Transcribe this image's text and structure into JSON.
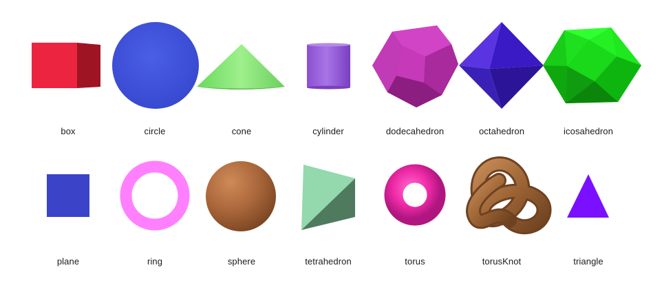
{
  "shapes": [
    {
      "label": "box"
    },
    {
      "label": "circle"
    },
    {
      "label": "cone"
    },
    {
      "label": "cylinder"
    },
    {
      "label": "dodecahedron"
    },
    {
      "label": "octahedron"
    },
    {
      "label": "icosahedron"
    },
    {
      "label": "plane"
    },
    {
      "label": "ring"
    },
    {
      "label": "sphere"
    },
    {
      "label": "tetrahedron"
    },
    {
      "label": "torus"
    },
    {
      "label": "torusKnot"
    },
    {
      "label": "triangle"
    }
  ],
  "colors": {
    "box": "#e8203a",
    "circle": "#3a4fd6",
    "cone": "#7be06a",
    "cylinder": "#9a5ad8",
    "dodecahedron": "#c436b4",
    "octahedron": "#4a22d0",
    "icosahedron": "#18e818",
    "plane": "#3b43c8",
    "ring": "#ff80ff",
    "sphere": "#b0683a",
    "tetrahedron": "#8fd0a6",
    "torus": "#f02aa8",
    "torusKnot": "#a97143",
    "triangle": "#7a10ff"
  }
}
